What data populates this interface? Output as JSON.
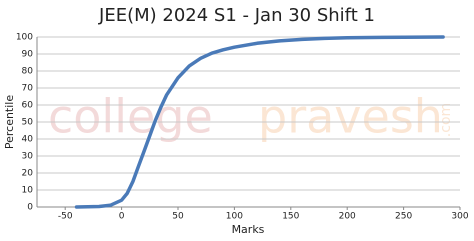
{
  "chart_data": {
    "type": "line",
    "title": "JEE(M) 2024 S1 - Jan 30 Shift 1",
    "x_label": "Marks",
    "y_label": "Percentile",
    "watermark": [
      "college",
      "pravesh",
      ".com"
    ],
    "x": [
      -40,
      -20,
      -10,
      0,
      5,
      10,
      15,
      20,
      25,
      30,
      35,
      40,
      50,
      60,
      70,
      80,
      90,
      100,
      120,
      140,
      160,
      180,
      200,
      220,
      250,
      285
    ],
    "series": [
      {
        "name": "Percentile",
        "color": "#4a7ab8",
        "values": [
          0,
          0.3,
          1,
          4,
          8,
          15,
          24,
          33,
          42,
          51,
          59,
          66,
          76,
          83,
          87.5,
          90.5,
          92.5,
          94,
          96.3,
          97.7,
          98.6,
          99.2,
          99.5,
          99.7,
          99.9,
          100
        ]
      }
    ],
    "xlim": [
      -75,
      300
    ],
    "ylim": [
      0,
      100
    ],
    "xticks": [
      -50,
      0,
      50,
      100,
      150,
      200,
      250,
      300
    ],
    "yticks": [
      0,
      10,
      20,
      30,
      40,
      50,
      60,
      70,
      80,
      90,
      100
    ],
    "grid": true
  }
}
